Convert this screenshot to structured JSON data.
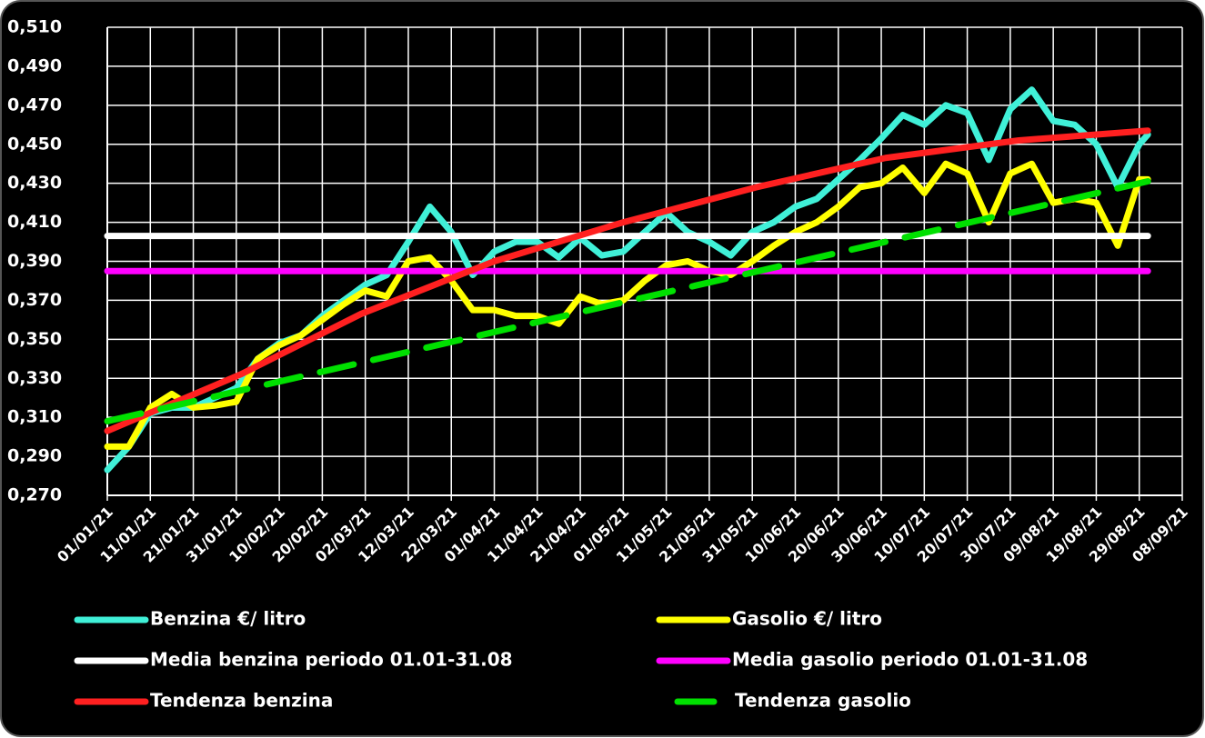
{
  "chart_data": {
    "type": "line",
    "x": [
      "2021-01-01",
      "2021-01-06",
      "2021-01-11",
      "2021-01-16",
      "2021-01-21",
      "2021-01-26",
      "2021-01-31",
      "2021-02-05",
      "2021-02-10",
      "2021-02-15",
      "2021-02-20",
      "2021-02-25",
      "2021-03-02",
      "2021-03-07",
      "2021-03-12",
      "2021-03-17",
      "2021-03-22",
      "2021-03-27",
      "2021-04-01",
      "2021-04-06",
      "2021-04-11",
      "2021-04-16",
      "2021-04-21",
      "2021-04-26",
      "2021-05-01",
      "2021-05-06",
      "2021-05-11",
      "2021-05-16",
      "2021-05-21",
      "2021-05-26",
      "2021-05-31",
      "2021-06-05",
      "2021-06-10",
      "2021-06-15",
      "2021-06-20",
      "2021-06-25",
      "2021-06-30",
      "2021-07-05",
      "2021-07-10",
      "2021-07-15",
      "2021-07-20",
      "2021-07-25",
      "2021-07-30",
      "2021-08-04",
      "2021-08-09",
      "2021-08-14",
      "2021-08-19",
      "2021-08-24",
      "2021-08-29",
      "2021-08-31"
    ],
    "series": [
      {
        "name": "Benzina €/ litro",
        "color": "#40f0d8",
        "values": [
          0.283,
          0.295,
          0.312,
          0.315,
          0.315,
          0.32,
          0.325,
          0.34,
          0.348,
          0.352,
          0.362,
          0.37,
          0.378,
          0.383,
          0.4,
          0.418,
          0.405,
          0.383,
          0.395,
          0.4,
          0.4,
          0.392,
          0.402,
          0.393,
          0.395,
          0.405,
          0.415,
          0.405,
          0.4,
          0.393,
          0.405,
          0.41,
          0.418,
          0.422,
          0.432,
          0.442,
          0.453,
          0.465,
          0.46,
          0.47,
          0.466,
          0.442,
          0.468,
          0.478,
          0.462,
          0.46,
          0.45,
          0.428,
          0.45,
          0.455
        ]
      },
      {
        "name": "Gasolio €/ litro",
        "color": "#ffff00",
        "values": [
          0.295,
          0.295,
          0.315,
          0.322,
          0.315,
          0.316,
          0.318,
          0.34,
          0.347,
          0.352,
          0.36,
          0.368,
          0.375,
          0.372,
          0.39,
          0.392,
          0.38,
          0.365,
          0.365,
          0.362,
          0.362,
          0.358,
          0.372,
          0.368,
          0.37,
          0.38,
          0.388,
          0.39,
          0.385,
          0.383,
          0.39,
          0.398,
          0.405,
          0.41,
          0.418,
          0.428,
          0.43,
          0.438,
          0.425,
          0.44,
          0.435,
          0.41,
          0.435,
          0.44,
          0.42,
          0.422,
          0.42,
          0.398,
          0.432,
          0.432
        ]
      },
      {
        "name": "Media benzina periodo 01.01-31.08",
        "color": "#ffffff",
        "x": [
          "2021-01-01",
          "2021-08-31"
        ],
        "values": [
          0.403,
          0.403
        ]
      },
      {
        "name": "Media gasolio periodo 01.01-31.08",
        "color": "#ff00ff",
        "x": [
          "2021-01-01",
          "2021-08-31"
        ],
        "values": [
          0.385,
          0.385
        ]
      },
      {
        "name": "Tendenza benzina",
        "color": "#ff2020",
        "x": [
          "2021-01-01",
          "2021-02-01",
          "2021-03-01",
          "2021-04-01",
          "2021-05-01",
          "2021-06-01",
          "2021-07-01",
          "2021-08-01",
          "2021-08-31"
        ],
        "values": [
          0.303,
          0.332,
          0.363,
          0.39,
          0.41,
          0.428,
          0.443,
          0.452,
          0.457
        ]
      },
      {
        "name": "Tendenza gasolio",
        "color": "#00e000",
        "dashed": true,
        "x": [
          "2021-01-01",
          "2021-08-31"
        ],
        "values": [
          0.308,
          0.431
        ]
      }
    ],
    "xlim": [
      "2021-01-01",
      "2021-09-08"
    ],
    "xticks": [
      {
        "value": "2021-01-01",
        "label": "01/01/21"
      },
      {
        "value": "2021-01-11",
        "label": "11/01/21"
      },
      {
        "value": "2021-01-21",
        "label": "21/01/21"
      },
      {
        "value": "2021-01-31",
        "label": "31/01/21"
      },
      {
        "value": "2021-02-10",
        "label": "10/02/21"
      },
      {
        "value": "2021-02-20",
        "label": "20/02/21"
      },
      {
        "value": "2021-03-02",
        "label": "02/03/21"
      },
      {
        "value": "2021-03-12",
        "label": "12/03/21"
      },
      {
        "value": "2021-03-22",
        "label": "22/03/21"
      },
      {
        "value": "2021-04-01",
        "label": "01/04/21"
      },
      {
        "value": "2021-04-11",
        "label": "11/04/21"
      },
      {
        "value": "2021-04-21",
        "label": "21/04/21"
      },
      {
        "value": "2021-05-01",
        "label": "01/05/21"
      },
      {
        "value": "2021-05-11",
        "label": "11/05/21"
      },
      {
        "value": "2021-05-21",
        "label": "21/05/21"
      },
      {
        "value": "2021-05-31",
        "label": "31/05/21"
      },
      {
        "value": "2021-06-10",
        "label": "10/06/21"
      },
      {
        "value": "2021-06-20",
        "label": "20/06/21"
      },
      {
        "value": "2021-06-30",
        "label": "30/06/21"
      },
      {
        "value": "2021-07-10",
        "label": "10/07/21"
      },
      {
        "value": "2021-07-20",
        "label": "20/07/21"
      },
      {
        "value": "2021-07-30",
        "label": "30/07/21"
      },
      {
        "value": "2021-08-09",
        "label": "09/08/21"
      },
      {
        "value": "2021-08-19",
        "label": "19/08/21"
      },
      {
        "value": "2021-08-29",
        "label": "29/08/21"
      },
      {
        "value": "2021-09-08",
        "label": "08/09/21"
      }
    ],
    "ylim": [
      0.27,
      0.51
    ],
    "yticks": [
      {
        "value": 0.27,
        "label": "0,270"
      },
      {
        "value": 0.29,
        "label": "0,290"
      },
      {
        "value": 0.31,
        "label": "0,310"
      },
      {
        "value": 0.33,
        "label": "0,330"
      },
      {
        "value": 0.35,
        "label": "0,350"
      },
      {
        "value": 0.37,
        "label": "0,370"
      },
      {
        "value": 0.39,
        "label": "0,390"
      },
      {
        "value": 0.41,
        "label": "0,410"
      },
      {
        "value": 0.43,
        "label": "0,430"
      },
      {
        "value": 0.45,
        "label": "0,450"
      },
      {
        "value": 0.47,
        "label": "0,470"
      },
      {
        "value": 0.49,
        "label": "0,490"
      },
      {
        "value": 0.51,
        "label": "0,510"
      }
    ],
    "grid": true,
    "legend": "bottom"
  }
}
